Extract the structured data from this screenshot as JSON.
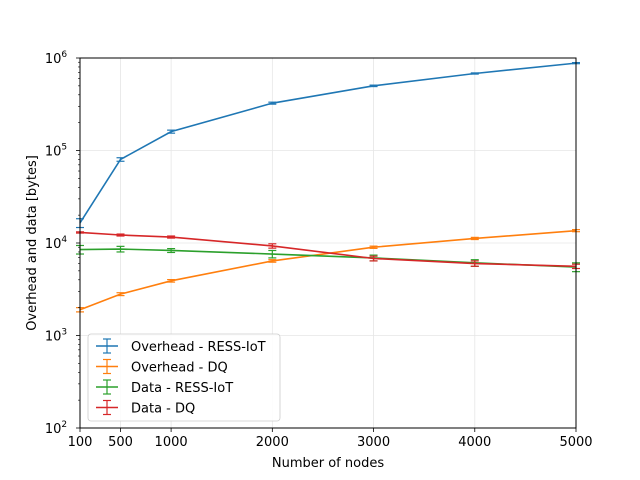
{
  "chart_data": {
    "type": "line",
    "title": "",
    "xlabel": "Number of nodes",
    "ylabel": "Overhead and data [bytes]",
    "x": [
      100,
      500,
      1000,
      2000,
      3000,
      4000,
      5000
    ],
    "xlim": [
      100,
      5000
    ],
    "ylim": [
      100,
      1000000
    ],
    "yscale": "log",
    "grid": true,
    "legend_position": "lower-left",
    "x_tick_labels": [
      "100",
      "500",
      "1000",
      "2000",
      "3000",
      "4000",
      "5000"
    ],
    "y_tick_labels": [
      {
        "base": "10",
        "exp": "2"
      },
      {
        "base": "10",
        "exp": "3"
      },
      {
        "base": "10",
        "exp": "4"
      },
      {
        "base": "10",
        "exp": "5"
      },
      {
        "base": "10",
        "exp": "6"
      }
    ],
    "series": [
      {
        "name": "Overhead - RESS-IoT",
        "color": "#1f77b4",
        "values": [
          16500,
          80000,
          160000,
          325000,
          500000,
          680000,
          880000
        ],
        "err": [
          1800,
          3500,
          6000,
          8000,
          9000,
          10000,
          12000
        ]
      },
      {
        "name": "Overhead - DQ",
        "color": "#ff7f0e",
        "values": [
          1900,
          2800,
          3900,
          6400,
          9000,
          11200,
          13600
        ],
        "err": [
          100,
          100,
          120,
          200,
          250,
          300,
          350
        ]
      },
      {
        "name": "Data - RESS-IoT",
        "color": "#2ca02c",
        "values": [
          8500,
          8600,
          8300,
          7600,
          6900,
          6100,
          5500
        ],
        "err": [
          900,
          600,
          400,
          700,
          500,
          500,
          600
        ]
      },
      {
        "name": "Data - DQ",
        "color": "#d62728",
        "values": [
          13000,
          12200,
          11600,
          9300,
          6800,
          6000,
          5600
        ],
        "err": [
          200,
          300,
          300,
          500,
          400,
          400,
          300
        ]
      }
    ]
  }
}
